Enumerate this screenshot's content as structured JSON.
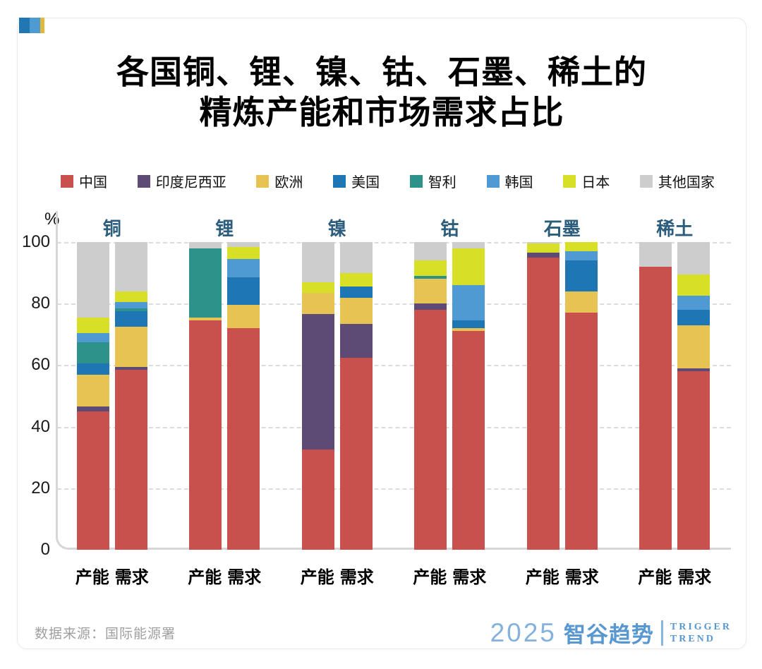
{
  "title": {
    "line1": "各国铜、锂、镍、钴、石墨、稀土的",
    "line2": "精炼产能和市场需求占比"
  },
  "corner_logo_colors": [
    "#2176b4",
    "#4e9ad2",
    "#e0b93c"
  ],
  "footer": {
    "source": "数据来源：国际能源署"
  },
  "brand": {
    "year": "2025",
    "name": "智谷趋势",
    "tagline_line1": "TRIGGER",
    "tagline_line2": "TREND",
    "color": "#5897cf"
  },
  "chart_data": {
    "type": "bar",
    "stacked": true,
    "unit": "%",
    "percent_label": "%",
    "ylim": [
      0,
      100
    ],
    "yticks": [
      0,
      20,
      40,
      60,
      80,
      100
    ],
    "grid": "horizontal dashed",
    "legend_position": "top",
    "group_label_color": "#2c5d7d",
    "series": [
      {
        "name": "中国",
        "color": "#c8504d"
      },
      {
        "name": "印度尼西亚",
        "color": "#5d4a75"
      },
      {
        "name": "欧洲",
        "color": "#e6c353"
      },
      {
        "name": "美国",
        "color": "#1e76b5"
      },
      {
        "name": "智利",
        "color": "#2d938a"
      },
      {
        "name": "韩国",
        "color": "#4f9ad3"
      },
      {
        "name": "日本",
        "color": "#d7df26"
      },
      {
        "name": "其他国家",
        "color": "#cdcdcd"
      }
    ],
    "categories": [
      "铜",
      "锂",
      "镍",
      "钴",
      "石墨",
      "稀土"
    ],
    "bar_labels": [
      "产能",
      "需求"
    ],
    "values": {
      "铜": {
        "产能": {
          "中国": 45,
          "印度尼西亚": 1.5,
          "欧洲": 10.5,
          "美国": 3.5,
          "智利": 7,
          "韩国": 3,
          "日本": 5,
          "其他国家": 24.5
        },
        "需求": {
          "中国": 58.5,
          "印度尼西亚": 1,
          "欧洲": 13,
          "美国": 5,
          "智利": 1,
          "韩国": 2,
          "日本": 3.5,
          "其他国家": 16
        }
      },
      "锂": {
        "产能": {
          "中国": 74.5,
          "欧洲": 1,
          "智利": 22.5,
          "其他国家": 2
        },
        "需求": {
          "中国": 72,
          "欧洲": 7.5,
          "美国": 9,
          "韩国": 6,
          "日本": 4,
          "其他国家": 1.5
        }
      },
      "镍": {
        "产能": {
          "中国": 32.5,
          "印度尼西亚": 44,
          "欧洲": 7,
          "日本": 3.5,
          "其他国家": 13
        },
        "需求": {
          "中国": 62.5,
          "印度尼西亚": 11,
          "欧洲": 8.5,
          "美国": 3.5,
          "日本": 4.5,
          "其他国家": 10
        }
      },
      "钴": {
        "产能": {
          "中国": 78,
          "印度尼西亚": 2,
          "欧洲": 8,
          "智利": 1,
          "日本": 5,
          "其他国家": 6
        },
        "需求": {
          "中国": 71,
          "欧洲": 1,
          "美国": 2.5,
          "韩国": 11.5,
          "日本": 12,
          "其他国家": 2
        }
      },
      "石墨": {
        "产能": {
          "中国": 95,
          "印度尼西亚": 1.5,
          "日本": 3,
          "其他国家": 0.5
        },
        "需求": {
          "中国": 77,
          "欧洲": 7,
          "美国": 10,
          "韩国": 3,
          "日本": 3
        }
      },
      "稀土": {
        "产能": {
          "中国": 92,
          "其他国家": 8
        },
        "需求": {
          "中国": 58,
          "印度尼西亚": 1,
          "欧洲": 14,
          "美国": 5,
          "韩国": 4.5,
          "日本": 7,
          "其他国家": 10.5
        }
      }
    }
  }
}
